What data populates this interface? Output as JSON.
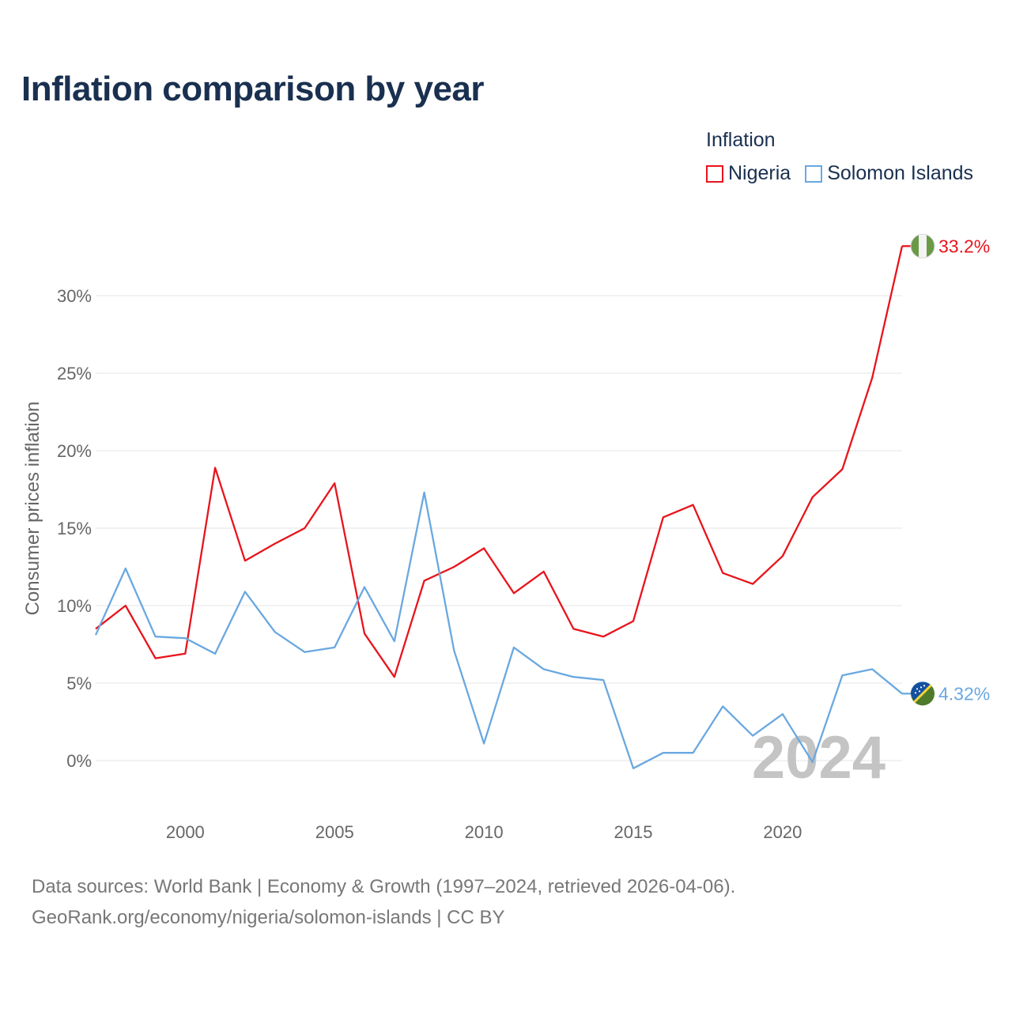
{
  "title": "Inflation comparison by year",
  "legend": {
    "title": "Inflation",
    "items": [
      {
        "label": "Nigeria",
        "color": "#e8141c"
      },
      {
        "label": "Solomon Islands",
        "color": "#6aa8e0"
      }
    ]
  },
  "footer": {
    "line1": "Data sources: World Bank | Economy & Growth (1997–2024, retrieved 2026-04-06).",
    "line2": "GeoRank.org/economy/nigeria/solomon-islands | CC BY"
  },
  "chart_data": {
    "type": "line",
    "title": "Inflation comparison by year",
    "xlabel": "",
    "ylabel": "Consumer prices inflation",
    "year_watermark": "2024",
    "xlim": [
      1997,
      2024
    ],
    "ylim": [
      -3,
      33.3
    ],
    "yticks": [
      0,
      5,
      10,
      15,
      20,
      25,
      30
    ],
    "ytick_labels": [
      "0%",
      "5%",
      "10%",
      "15%",
      "20%",
      "25%",
      "30%"
    ],
    "xticks": [
      2000,
      2005,
      2010,
      2015,
      2020
    ],
    "xtick_labels": [
      "2000",
      "2005",
      "2010",
      "2015",
      "2020"
    ],
    "grid": true,
    "legend_position": "top-right",
    "x": [
      1997,
      1998,
      1999,
      2000,
      2001,
      2002,
      2003,
      2004,
      2005,
      2006,
      2007,
      2008,
      2009,
      2010,
      2011,
      2012,
      2013,
      2014,
      2015,
      2016,
      2017,
      2018,
      2019,
      2020,
      2021,
      2022,
      2023,
      2024
    ],
    "series": [
      {
        "name": "Nigeria",
        "color": "#e8141c",
        "end_label": "33.2%",
        "values": [
          8.5,
          10.0,
          6.6,
          6.9,
          18.9,
          12.9,
          14.0,
          15.0,
          17.9,
          8.2,
          5.4,
          11.6,
          12.5,
          13.7,
          10.8,
          12.2,
          8.5,
          8.0,
          9.0,
          15.7,
          16.5,
          12.1,
          11.4,
          13.2,
          17.0,
          18.8,
          24.7,
          33.2
        ]
      },
      {
        "name": "Solomon Islands",
        "color": "#6aa8e0",
        "end_label": "4.32%",
        "values": [
          8.1,
          12.4,
          8.0,
          7.9,
          6.9,
          10.9,
          8.3,
          7.0,
          7.3,
          11.2,
          7.7,
          17.3,
          7.1,
          1.1,
          7.3,
          5.9,
          5.4,
          5.2,
          -0.5,
          0.5,
          0.5,
          3.5,
          1.6,
          3.0,
          -0.1,
          5.5,
          5.9,
          4.32
        ]
      }
    ]
  }
}
